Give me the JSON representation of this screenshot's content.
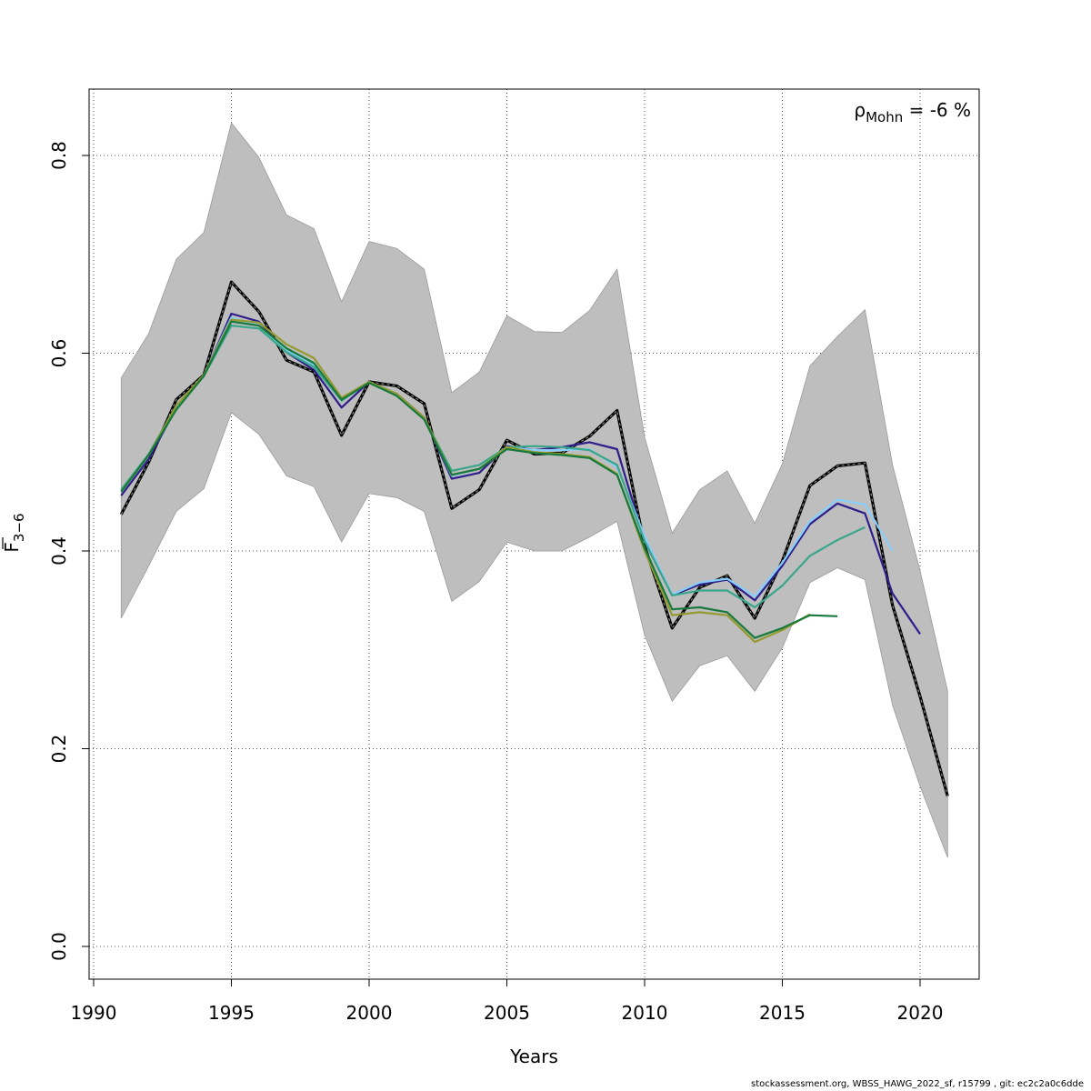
{
  "chart_data": {
    "type": "line",
    "title": "",
    "xlabel": "Years",
    "ylabel": {
      "main": "F",
      "sub": "3−6"
    },
    "xlim": [
      1990,
      2022
    ],
    "ylim": [
      0,
      0.87
    ],
    "xticks": [
      1990,
      1995,
      2000,
      2005,
      2010,
      2015,
      2020
    ],
    "xtick_labels": [
      "1990",
      "1995",
      "2000",
      "2005",
      "2010",
      "2015",
      "2020"
    ],
    "yticks": [
      0.0,
      0.2,
      0.4,
      0.6,
      0.8
    ],
    "ytick_labels": [
      "0.0",
      "0.2",
      "0.4",
      "0.6",
      "0.8"
    ],
    "grid": true,
    "annotation": {
      "rho": "ρ",
      "sub": "Mohn",
      "value": " = -6 %"
    },
    "confidence_band": {
      "color": "#bebebe",
      "x": [
        1991,
        1992,
        1993,
        1994,
        1995,
        1996,
        1997,
        1998,
        1999,
        2000,
        2001,
        2002,
        2003,
        2004,
        2005,
        2006,
        2007,
        2008,
        2009,
        2010,
        2011,
        2012,
        2013,
        2014,
        2015,
        2016,
        2017,
        2018,
        2019,
        2020,
        2021
      ],
      "upper": [
        0.575,
        0.62,
        0.695,
        0.722,
        0.833,
        0.798,
        0.74,
        0.726,
        0.652,
        0.713,
        0.706,
        0.685,
        0.56,
        0.581,
        0.638,
        0.622,
        0.621,
        0.643,
        0.685,
        0.515,
        0.418,
        0.462,
        0.481,
        0.428,
        0.488,
        0.587,
        0.617,
        0.644,
        0.487,
        0.38,
        0.258
      ],
      "lower": [
        0.332,
        0.385,
        0.44,
        0.463,
        0.54,
        0.518,
        0.476,
        0.465,
        0.409,
        0.458,
        0.454,
        0.44,
        0.349,
        0.369,
        0.409,
        0.4,
        0.4,
        0.414,
        0.43,
        0.315,
        0.248,
        0.284,
        0.294,
        0.258,
        0.302,
        0.368,
        0.383,
        0.371,
        0.244,
        0.162,
        0.09
      ]
    },
    "series": [
      {
        "color": "#000000",
        "dashed": true,
        "x": [
          1991,
          1992,
          1993,
          1994,
          1995,
          1996,
          1997,
          1998,
          1999,
          2000,
          2001,
          2002,
          2003,
          2004,
          2005,
          2006,
          2007,
          2008,
          2009,
          2010,
          2011,
          2012,
          2013,
          2014,
          2015,
          2016,
          2017,
          2018,
          2019,
          2020,
          2021
        ],
        "values": [
          0.437,
          0.49,
          0.553,
          0.578,
          0.672,
          0.642,
          0.593,
          0.581,
          0.517,
          0.571,
          0.567,
          0.549,
          0.443,
          0.462,
          0.512,
          0.498,
          0.499,
          0.516,
          0.542,
          0.405,
          0.322,
          0.363,
          0.375,
          0.332,
          0.39,
          0.466,
          0.486,
          0.489,
          0.345,
          0.253,
          0.152
        ]
      },
      {
        "color": "#2d1e8c",
        "dashed": false,
        "x": [
          1991,
          1992,
          1993,
          1994,
          1995,
          1996,
          1997,
          1998,
          1999,
          2000,
          2001,
          2002,
          2003,
          2004,
          2005,
          2006,
          2007,
          2008,
          2009,
          2010,
          2011,
          2012,
          2013,
          2014,
          2015,
          2016,
          2017,
          2018,
          2019,
          2020
        ],
        "values": [
          0.456,
          0.493,
          0.545,
          0.577,
          0.64,
          0.632,
          0.601,
          0.583,
          0.545,
          0.571,
          0.559,
          0.535,
          0.473,
          0.479,
          0.506,
          0.502,
          0.505,
          0.51,
          0.503,
          0.41,
          0.355,
          0.366,
          0.371,
          0.35,
          0.385,
          0.427,
          0.448,
          0.438,
          0.357,
          0.316
        ]
      },
      {
        "color": "#87cefa",
        "dashed": false,
        "x": [
          1991,
          1992,
          1993,
          1994,
          1995,
          1996,
          1997,
          1998,
          1999,
          2000,
          2001,
          2002,
          2003,
          2004,
          2005,
          2006,
          2007,
          2008,
          2009,
          2010,
          2011,
          2012,
          2013,
          2014,
          2015,
          2016,
          2017,
          2018,
          2019
        ],
        "values": [
          0.46,
          0.497,
          0.546,
          0.578,
          0.636,
          0.628,
          0.603,
          0.588,
          0.552,
          0.571,
          0.558,
          0.535,
          0.476,
          0.483,
          0.505,
          0.502,
          0.502,
          0.503,
          0.485,
          0.415,
          0.356,
          0.368,
          0.372,
          0.354,
          0.388,
          0.43,
          0.452,
          0.447,
          0.4
        ]
      },
      {
        "color": "#3aa68a",
        "dashed": false,
        "x": [
          1991,
          1992,
          1993,
          1994,
          1995,
          1996,
          1997,
          1998,
          1999,
          2000,
          2001,
          2002,
          2003,
          2004,
          2005,
          2006,
          2007,
          2008,
          2009,
          2010,
          2011,
          2012,
          2013,
          2014,
          2015,
          2016,
          2017,
          2018
        ],
        "values": [
          0.462,
          0.498,
          0.547,
          0.577,
          0.628,
          0.625,
          0.601,
          0.586,
          0.552,
          0.571,
          0.557,
          0.534,
          0.481,
          0.487,
          0.505,
          0.506,
          0.505,
          0.502,
          0.487,
          0.41,
          0.355,
          0.36,
          0.36,
          0.343,
          0.365,
          0.395,
          0.411,
          0.424
        ]
      },
      {
        "color": "#959a30",
        "dashed": false,
        "x": [
          1991,
          1992,
          1993,
          1994,
          1995,
          1996,
          1997,
          1998,
          1999,
          2000,
          2001,
          2002,
          2003,
          2004,
          2005,
          2006,
          2007,
          2008,
          2009,
          2010,
          2011,
          2012,
          2013,
          2014,
          2015,
          2016
        ],
        "values": [
          0.46,
          0.497,
          0.547,
          0.578,
          0.634,
          0.631,
          0.609,
          0.595,
          0.555,
          0.571,
          0.559,
          0.535,
          0.477,
          0.483,
          0.505,
          0.5,
          0.498,
          0.495,
          0.478,
          0.4,
          0.335,
          0.338,
          0.335,
          0.308,
          0.32,
          0.336
        ]
      },
      {
        "color": "#177a3c",
        "dashed": false,
        "x": [
          1991,
          1992,
          1993,
          1994,
          1995,
          1996,
          1997,
          1998,
          1999,
          2000,
          2001,
          2002,
          2003,
          2004,
          2005,
          2006,
          2007,
          2008,
          2009,
          2010,
          2011,
          2012,
          2013,
          2014,
          2015,
          2016,
          2017
        ],
        "values": [
          0.46,
          0.497,
          0.543,
          0.577,
          0.632,
          0.628,
          0.605,
          0.59,
          0.553,
          0.57,
          0.557,
          0.533,
          0.477,
          0.483,
          0.503,
          0.499,
          0.497,
          0.494,
          0.477,
          0.403,
          0.341,
          0.343,
          0.338,
          0.312,
          0.322,
          0.335,
          0.334
        ]
      }
    ]
  },
  "footer": "stockassessment.org, WBSS_HAWG_2022_sf, r15799 , git: ec2c2a0c6dde"
}
